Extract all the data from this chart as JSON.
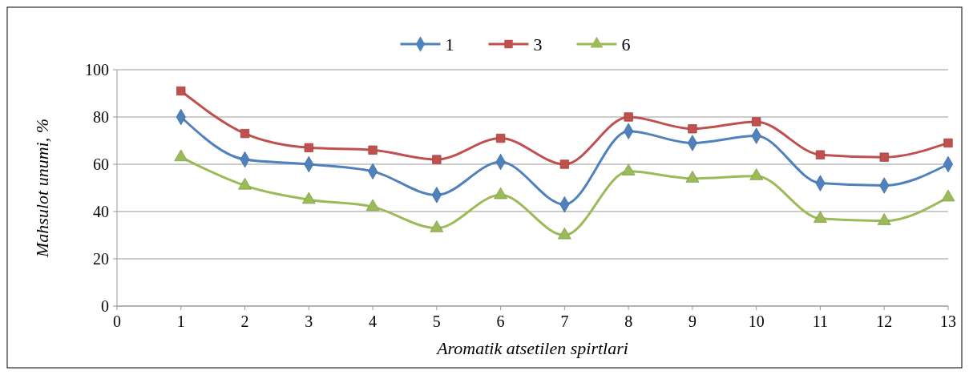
{
  "chart_data": {
    "type": "line",
    "xlabel": "Aromatik atsetilen spirtlari",
    "ylabel": "Mahsulot unumi, %",
    "x": [
      1,
      2,
      3,
      4,
      5,
      6,
      7,
      8,
      9,
      10,
      11,
      12,
      13
    ],
    "xlim": [
      0,
      13
    ],
    "xticks": [
      0,
      1,
      2,
      3,
      4,
      5,
      6,
      7,
      8,
      9,
      10,
      11,
      12,
      13
    ],
    "ylim": [
      0,
      100
    ],
    "yticks": [
      0,
      20,
      40,
      60,
      80,
      100
    ],
    "grid": "y",
    "legend": "top",
    "line_style": "solid",
    "series": [
      {
        "name": "1",
        "color": "#4f81bd",
        "marker": "diamond",
        "values": [
          80,
          62,
          60,
          57,
          47,
          61,
          43,
          74,
          69,
          72,
          52,
          51,
          60
        ]
      },
      {
        "name": "3",
        "color": "#c0504d",
        "marker": "square",
        "values": [
          91,
          73,
          67,
          66,
          62,
          71,
          60,
          80,
          75,
          78,
          64,
          63,
          69
        ]
      },
      {
        "name": "6",
        "color": "#9bbb59",
        "marker": "triangle",
        "values": [
          63,
          51,
          45,
          42,
          33,
          47,
          30,
          57,
          54,
          55,
          37,
          36,
          46
        ]
      }
    ]
  }
}
